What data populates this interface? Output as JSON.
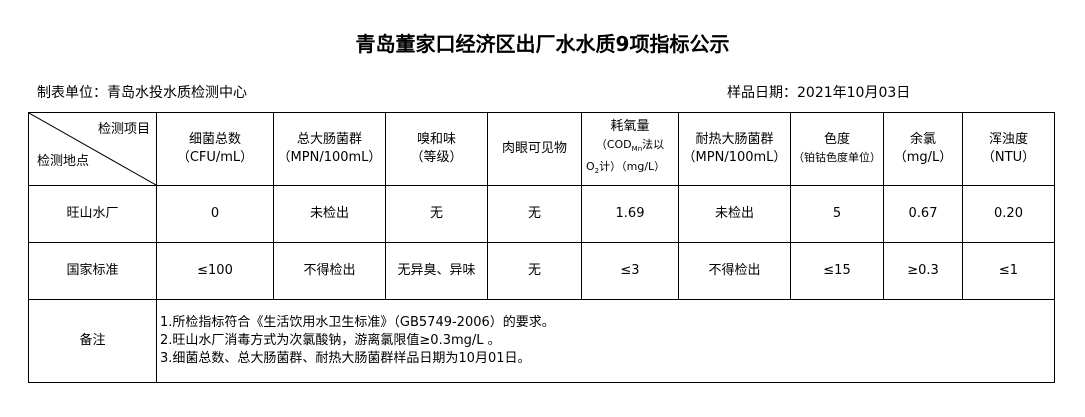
{
  "title": "青岛董家口经济区出厂水水质9项指标公示",
  "unit": "制表单位：青岛水投水质检测中心",
  "date": "样品日期：2021年10月03日",
  "corner": {
    "top": "检测项目",
    "bottom": "检测地点"
  },
  "headers": [
    {
      "name": "细菌总数",
      "unit": "（CFU/mL）"
    },
    {
      "name": "总大肠菌群",
      "unit": "（MPN/100mL）"
    },
    {
      "name": "嗅和味",
      "unit": "（等级）"
    },
    {
      "name": "肉眼可见物",
      "unit": ""
    },
    {
      "name": "耗氧量",
      "unit_a": "（COD",
      "unit_sub": "Mn",
      "unit_b": "法以",
      "unit_c": "O",
      "unit_sub2": "2",
      "unit_d": "计）（mg/L）"
    },
    {
      "name": "耐热大肠菌群",
      "unit": "（MPN/100mL）"
    },
    {
      "name": "色度",
      "unit": "（铂钴色度单位）"
    },
    {
      "name": "余氯",
      "unit": "（mg/L）"
    },
    {
      "name": "浑浊度",
      "unit": "（NTU）"
    }
  ],
  "rows": [
    {
      "label": "旺山水厂",
      "values": [
        "0",
        "未检出",
        "无",
        "无",
        "1.69",
        "未检出",
        "5",
        "0.67",
        "0.20"
      ]
    },
    {
      "label": "国家标准",
      "values": [
        "≤100",
        "不得检出",
        "无异臭、异味",
        "无",
        "≤3",
        "不得检出",
        "≤15",
        "≥0.3",
        "≤1"
      ]
    }
  ],
  "remark": {
    "label": "备注",
    "lines": [
      "1.所检指标符合《生活饮用水卫生标准》（GB5749-2006）的要求。",
      "2.旺山水厂消毒方式为次氯酸钠，游离氯限值≥0.3mg/L 。",
      "3.细菌总数、总大肠菌群、耐热大肠菌群样品日期为10月01日。"
    ]
  }
}
